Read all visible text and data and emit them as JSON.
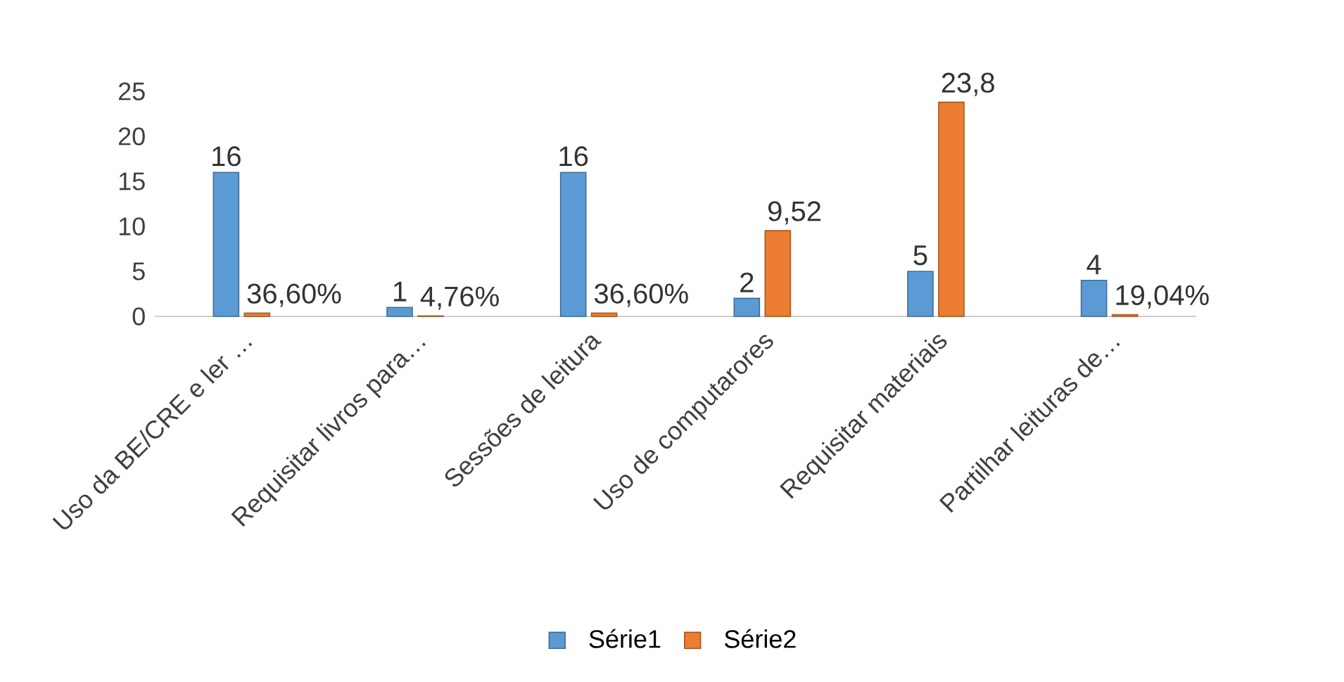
{
  "chart_data": {
    "type": "bar",
    "categories": [
      "Uso da BE/CRE e ler …",
      "Requisitar livros para…",
      "Sessões de leitura",
      "Uso de computarores",
      "Requisitar materiais",
      "Partilhar leituras de…"
    ],
    "series": [
      {
        "name": "Série1",
        "color": "#5b9bd5",
        "values": [
          16,
          1,
          16,
          2,
          5,
          4
        ],
        "value_labels": [
          "16",
          "1",
          "16",
          "2",
          "5",
          "4"
        ]
      },
      {
        "name": "Série2",
        "color": "#ed7d31",
        "values": [
          0.366,
          0.0476,
          0.366,
          9.52,
          23.8,
          0.1904
        ],
        "value_labels": [
          "36,60%",
          "4,76%",
          "36,60%",
          "9,52",
          "23,8",
          "19,04%"
        ]
      }
    ],
    "ylim": [
      0,
      25
    ],
    "yticks": [
      0,
      5,
      10,
      15,
      20,
      25
    ],
    "grid": false,
    "legend": "bottom"
  }
}
